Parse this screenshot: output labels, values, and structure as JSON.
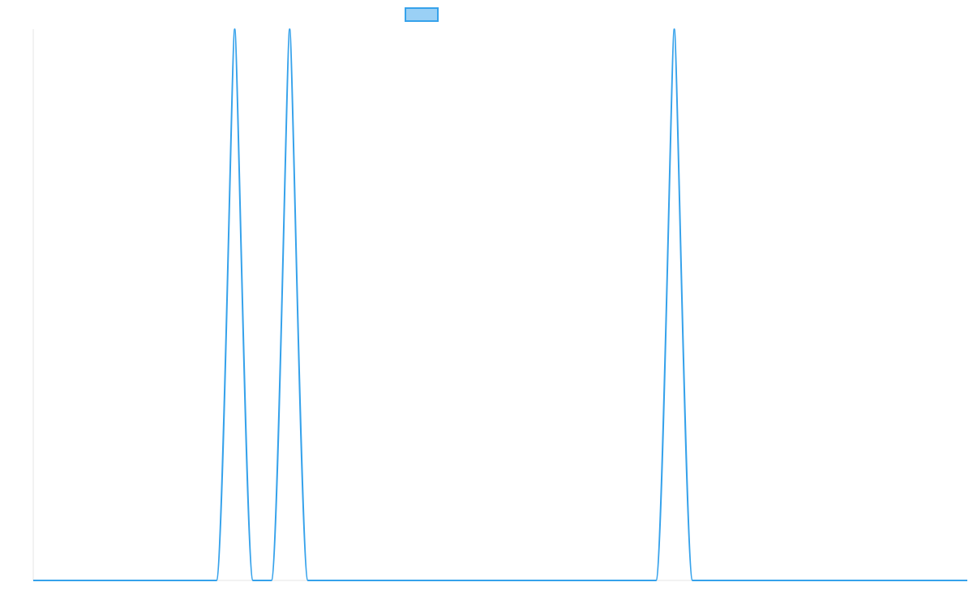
{
  "chart_data": {
    "type": "line",
    "title": "",
    "xlabel": "",
    "ylabel": "",
    "xlim": [
      0,
      51
    ],
    "ylim": [
      0,
      1
    ],
    "grid": false,
    "legend": {
      "placement": "top-center",
      "entries": [
        {
          "label": "",
          "color": "#36a2eb",
          "fill": "#9ad0f5"
        }
      ]
    },
    "series": [
      {
        "color": "#36a2eb",
        "points": [
          {
            "x": 0,
            "y": 0
          },
          {
            "x": 10,
            "y": 0
          },
          {
            "x": 11,
            "y": 1
          },
          {
            "x": 12,
            "y": 0
          },
          {
            "x": 13,
            "y": 0
          },
          {
            "x": 14,
            "y": 1
          },
          {
            "x": 15,
            "y": 0
          },
          {
            "x": 34,
            "y": 0
          },
          {
            "x": 35,
            "y": 1
          },
          {
            "x": 36,
            "y": 0
          },
          {
            "x": 51,
            "y": 0
          }
        ]
      }
    ]
  }
}
